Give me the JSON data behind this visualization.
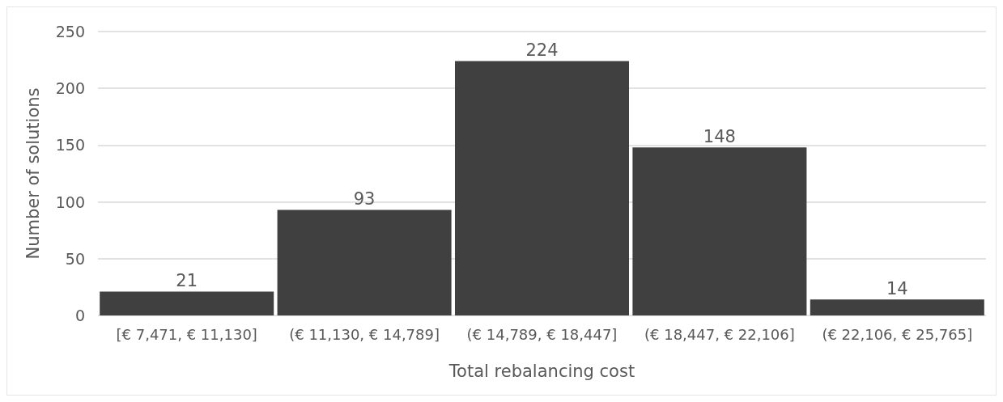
{
  "chart_data": {
    "type": "bar",
    "xlabel": "Total rebalancing cost",
    "ylabel": "Number of solutions",
    "categories": [
      "[€ 7,471, € 11,130]",
      "(€ 11,130, € 14,789]",
      "(€ 14,789, € 18,447]",
      "(€ 18,447, € 22,106]",
      "(€ 22,106, € 25,765]"
    ],
    "values": [
      21,
      93,
      224,
      148,
      14
    ],
    "color": "#404040",
    "data_labels": true,
    "ylim": [
      0,
      250
    ],
    "yticks": [
      0,
      50,
      100,
      150,
      200,
      250
    ],
    "grid": "y"
  }
}
